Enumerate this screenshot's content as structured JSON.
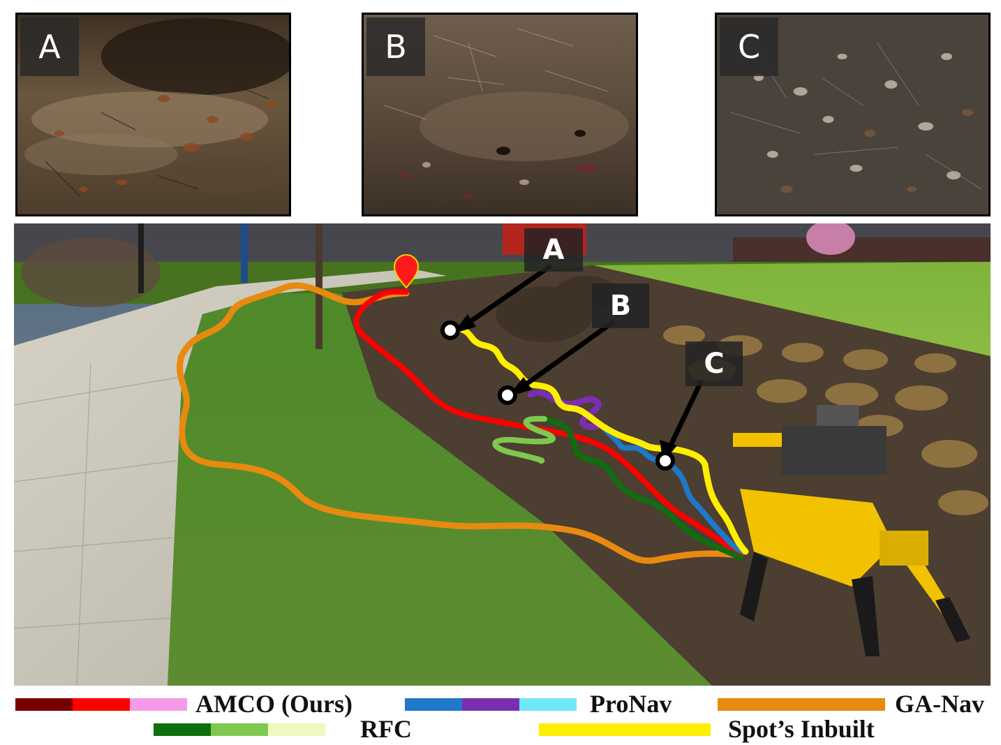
{
  "panels": [
    {
      "tag": "A",
      "terrain": "wet muddy ground with leaves"
    },
    {
      "tag": "B",
      "terrain": "dry soil with twigs"
    },
    {
      "tag": "C",
      "terrain": "leaf litter and pine needles"
    }
  ],
  "scene": {
    "markers": [
      "A",
      "B",
      "C"
    ],
    "goal_marker": "map-pin-icon"
  },
  "legend": {
    "amco": {
      "label": "AMCO (Ours)",
      "colors": [
        "#7a0000",
        "#ff0000",
        "#f59ae8"
      ]
    },
    "pronav": {
      "label": "ProNav",
      "colors": [
        "#1f78c8",
        "#7a2fb0",
        "#6fe8f8"
      ]
    },
    "ganav": {
      "label": "GA-Nav",
      "colors": [
        "#e88a10"
      ]
    },
    "rfc": {
      "label": "RFC",
      "colors": [
        "#0f6e0f",
        "#7ec850",
        "#eef8c0"
      ]
    },
    "spot": {
      "label": "Spot’s Inbuilt",
      "colors": [
        "#ffee00"
      ]
    }
  },
  "colors": {
    "amco_path": "#ff0000",
    "pronav_path_a": "#1f78c8",
    "pronav_path_b": "#7a2fb0",
    "ganav_path": "#e88a10",
    "rfc_path_a": "#0f6e0f",
    "rfc_path_b": "#7ec850",
    "spot_path": "#ffee00",
    "robot_body": "#f2c200"
  }
}
